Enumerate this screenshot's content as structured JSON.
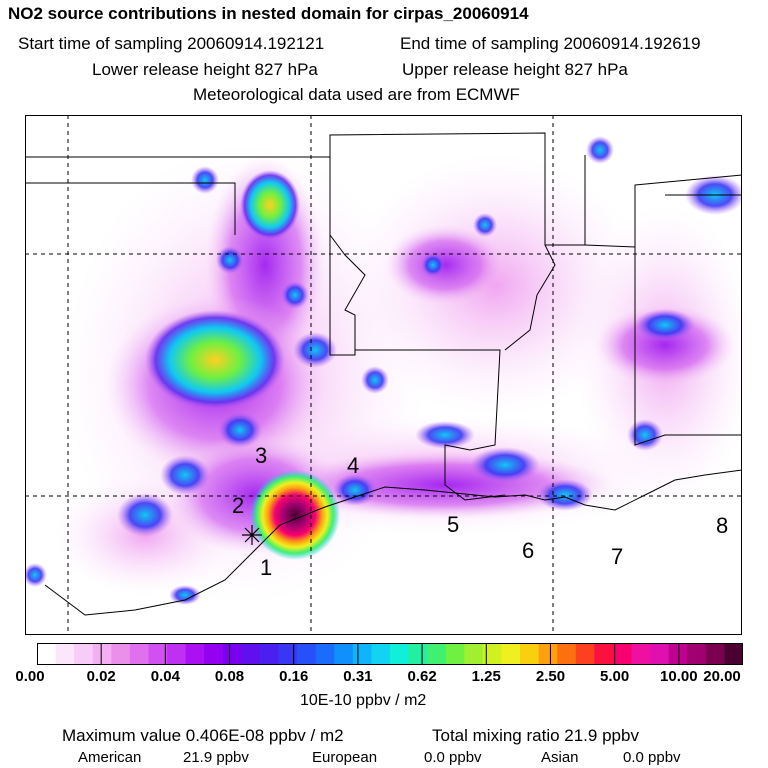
{
  "title": "NO2 source contributions in nested domain for cirpas_20060914",
  "sampling": {
    "start": "Start time of sampling 20060914.192121",
    "end": "End time of sampling 20060914.192619"
  },
  "release": {
    "lower": "Lower release height  827 hPa",
    "upper": "Upper release height  827 hPa"
  },
  "met": "Meteorological data used are from ECMWF",
  "map": {
    "site_labels": [
      "1",
      "2",
      "3",
      "4",
      "5",
      "6",
      "7",
      "8"
    ]
  },
  "colorbar": {
    "ticks": [
      "0.00",
      "0.02",
      "0.04",
      "0.08",
      "0.16",
      "0.31",
      "0.62",
      "1.25",
      "2.50",
      "5.00",
      "10.00",
      "20.00"
    ],
    "colors": [
      "#ffffff",
      "#fce6fc",
      "#f8ccf8",
      "#f2b0f2",
      "#ea90ea",
      "#e070ee",
      "#d050f0",
      "#c030f2",
      "#aa10f2",
      "#9400f0",
      "#7a00f0",
      "#6010ee",
      "#4a20f0",
      "#3838f4",
      "#2850f8",
      "#1a6cfc",
      "#1090fc",
      "#10b4fc",
      "#10d4f0",
      "#10f0d8",
      "#20f0a0",
      "#40f070",
      "#70f040",
      "#a0f030",
      "#d0f020",
      "#f0f020",
      "#f8d010",
      "#fca010",
      "#fc7010",
      "#fc4020",
      "#fc1040",
      "#f80070",
      "#ee10a0",
      "#e010b0",
      "#c00090",
      "#a00070",
      "#7a0050",
      "#4a0030"
    ],
    "units": "10E-10 ppbv / m2"
  },
  "summary": {
    "max": "Maximum value  0.406E-08 ppbv / m2",
    "total": "Total mixing ratio      21.9 ppbv",
    "american_label": "American",
    "american_value": "21.9 ppbv",
    "european_label": "European",
    "european_value": "0.0 ppbv",
    "asian_label": "Asian",
    "asian_value": "0.0 ppbv"
  }
}
